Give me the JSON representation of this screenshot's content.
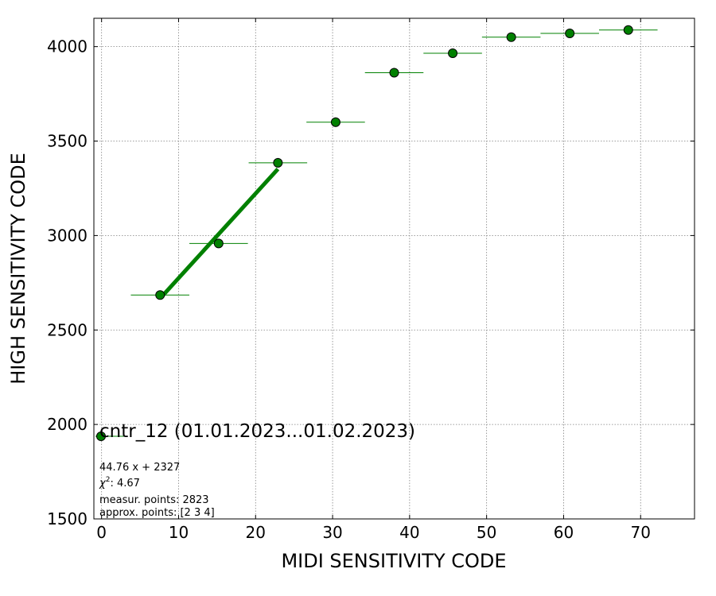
{
  "chart_data": {
    "type": "scatter",
    "xlabel": "MIDI SENSITIVITY CODE",
    "ylabel": "HIGH SENSITIVITY CODE",
    "xlim": [
      -1,
      77
    ],
    "ylim": [
      1500,
      4150
    ],
    "x_ticks": [
      0,
      10,
      20,
      30,
      40,
      50,
      60,
      70
    ],
    "y_ticks": [
      1500,
      2000,
      2500,
      3000,
      3500,
      4000
    ],
    "grid": true,
    "points": [
      {
        "x": 7.6,
        "y": 2685,
        "xerr": 3.8,
        "yerr": 18
      },
      {
        "x": 15.2,
        "y": 2958,
        "xerr": 3.8,
        "yerr": 18
      },
      {
        "x": 22.9,
        "y": 3385,
        "xerr": 3.8,
        "yerr": 25
      },
      {
        "x": 30.4,
        "y": 3600,
        "xerr": 3.8,
        "yerr": 25
      },
      {
        "x": 38.0,
        "y": 3862,
        "xerr": 3.8,
        "yerr": 25
      },
      {
        "x": 45.6,
        "y": 3965,
        "xerr": 3.8,
        "yerr": 25
      },
      {
        "x": 53.2,
        "y": 4050,
        "xerr": 3.8,
        "yerr": 15
      },
      {
        "x": 60.8,
        "y": 4070,
        "xerr": 3.8,
        "yerr": 15
      },
      {
        "x": 68.4,
        "y": 4088,
        "xerr": 3.8,
        "yerr": 15
      }
    ],
    "fit": {
      "slope": 44.76,
      "intercept": 2327,
      "x_range": [
        7.6,
        22.9
      ]
    },
    "colors": {
      "marker": "#008000",
      "marker_edge": "#000000",
      "fit_line": "#008000",
      "grid": "#808080"
    },
    "legend": {
      "placement": "bottom-left",
      "title": "cntr_12 (01.01.2023...01.02.2023)",
      "lines": [
        "44.76 x + 2327",
        "measur. points: 2823",
        "approx. points: [2 3 4]"
      ],
      "chi_label": "χ",
      "chi_exp": "2",
      "chi_value": ": 4.67"
    }
  }
}
